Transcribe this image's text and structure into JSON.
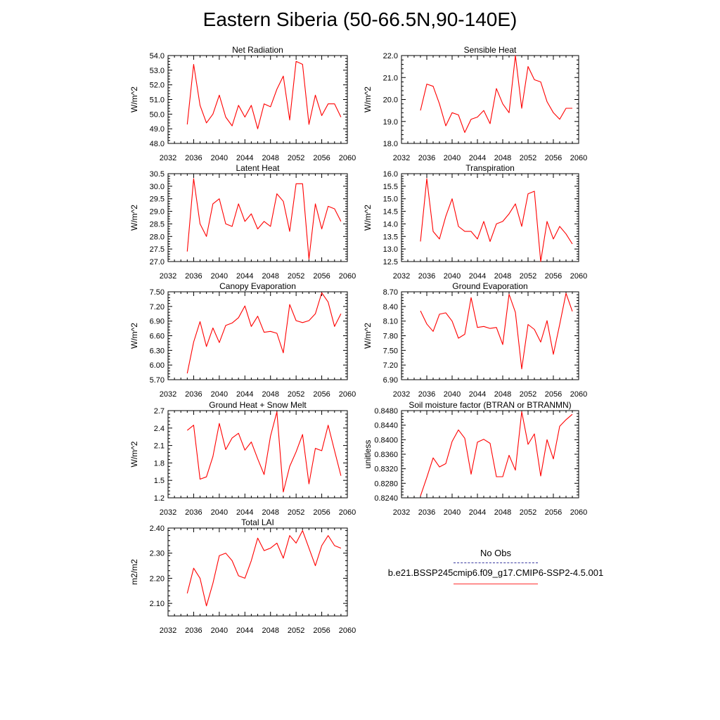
{
  "page_title": "Eastern Siberia (50-66.5N,90-140E)",
  "legend": {
    "obs_label": "No Obs",
    "case_label": "b.e21.BSSP245cmip6.f09_g17.CMIP6-SSP2-4.5.001",
    "obs_color": "#3a3aa0",
    "case_color": "#ff0000"
  },
  "chart_data": [
    {
      "type": "line",
      "title": "Net Radiation",
      "ylabel": "W/m^2",
      "xlim": [
        2032,
        2060
      ],
      "ylim": [
        48.0,
        54.0
      ],
      "xticks": [
        "2032",
        "2036",
        "2040",
        "2044",
        "2048",
        "2052",
        "2056",
        "2060"
      ],
      "yticks": [
        "48.0",
        "49.0",
        "50.0",
        "51.0",
        "52.0",
        "53.0",
        "54.0"
      ],
      "x": [
        2035,
        2036,
        2037,
        2038,
        2039,
        2040,
        2041,
        2042,
        2043,
        2044,
        2045,
        2046,
        2047,
        2048,
        2049,
        2050,
        2051,
        2052,
        2053,
        2054,
        2055,
        2056,
        2057,
        2058,
        2059
      ],
      "series": [
        {
          "values": [
            49.3,
            53.4,
            50.6,
            49.4,
            50.0,
            51.3,
            49.8,
            49.2,
            50.6,
            49.8,
            50.6,
            49.0,
            50.7,
            50.5,
            51.7,
            52.6,
            49.6,
            53.6,
            53.4,
            49.3,
            51.3,
            49.9,
            50.7,
            50.7,
            49.8
          ]
        }
      ]
    },
    {
      "type": "line",
      "title": "Sensible Heat",
      "ylabel": "W/m^2",
      "xlim": [
        2032,
        2060
      ],
      "ylim": [
        18.0,
        22.0
      ],
      "xticks": [
        "2032",
        "2036",
        "2040",
        "2044",
        "2048",
        "2052",
        "2056",
        "2060"
      ],
      "yticks": [
        "18.0",
        "19.0",
        "20.0",
        "21.0",
        "22.0"
      ],
      "x": [
        2035,
        2036,
        2037,
        2038,
        2039,
        2040,
        2041,
        2042,
        2043,
        2044,
        2045,
        2046,
        2047,
        2048,
        2049,
        2050,
        2051,
        2052,
        2053,
        2054,
        2055,
        2056,
        2057,
        2058,
        2059
      ],
      "series": [
        {
          "values": [
            19.5,
            20.7,
            20.6,
            19.8,
            18.8,
            19.4,
            19.3,
            18.5,
            19.1,
            19.2,
            19.5,
            18.9,
            20.5,
            19.8,
            19.4,
            22.0,
            19.6,
            21.5,
            20.9,
            20.8,
            19.9,
            19.4,
            19.1,
            19.6,
            19.6
          ]
        }
      ]
    },
    {
      "type": "line",
      "title": "Latent Heat",
      "ylabel": "W/m^2",
      "xlim": [
        2032,
        2060
      ],
      "ylim": [
        27.0,
        30.5
      ],
      "xticks": [
        "2032",
        "2036",
        "2040",
        "2044",
        "2048",
        "2052",
        "2056",
        "2060"
      ],
      "yticks": [
        "27.0",
        "27.5",
        "28.0",
        "28.5",
        "29.0",
        "29.5",
        "30.0",
        "30.5"
      ],
      "x": [
        2035,
        2036,
        2037,
        2038,
        2039,
        2040,
        2041,
        2042,
        2043,
        2044,
        2045,
        2046,
        2047,
        2048,
        2049,
        2050,
        2051,
        2052,
        2053,
        2054,
        2055,
        2056,
        2057,
        2058,
        2059
      ],
      "series": [
        {
          "values": [
            27.4,
            30.3,
            28.5,
            28.0,
            29.3,
            29.5,
            28.5,
            28.4,
            29.3,
            28.6,
            28.9,
            28.3,
            28.6,
            28.4,
            29.7,
            29.4,
            28.2,
            30.1,
            30.1,
            27.1,
            29.3,
            28.3,
            29.2,
            29.1,
            28.6
          ]
        }
      ]
    },
    {
      "type": "line",
      "title": "Transpiration",
      "ylabel": "W/m^2",
      "xlim": [
        2032,
        2060
      ],
      "ylim": [
        12.5,
        16.0
      ],
      "xticks": [
        "2032",
        "2036",
        "2040",
        "2044",
        "2048",
        "2052",
        "2056",
        "2060"
      ],
      "yticks": [
        "12.5",
        "13.0",
        "13.5",
        "14.0",
        "14.5",
        "15.0",
        "15.5",
        "16.0"
      ],
      "x": [
        2035,
        2036,
        2037,
        2038,
        2039,
        2040,
        2041,
        2042,
        2043,
        2044,
        2045,
        2046,
        2047,
        2048,
        2049,
        2050,
        2051,
        2052,
        2053,
        2054,
        2055,
        2056,
        2057,
        2058,
        2059
      ],
      "series": [
        {
          "values": [
            13.3,
            15.8,
            13.7,
            13.4,
            14.3,
            15.0,
            13.9,
            13.7,
            13.7,
            13.4,
            14.1,
            13.3,
            14.0,
            14.1,
            14.4,
            14.8,
            13.9,
            15.2,
            15.3,
            12.5,
            14.1,
            13.4,
            13.9,
            13.6,
            13.2
          ]
        }
      ]
    },
    {
      "type": "line",
      "title": "Canopy Evaporation",
      "ylabel": "W/m^2",
      "xlim": [
        2032,
        2060
      ],
      "ylim": [
        5.7,
        7.5
      ],
      "xticks": [
        "2032",
        "2036",
        "2040",
        "2044",
        "2048",
        "2052",
        "2056",
        "2060"
      ],
      "yticks": [
        "5.70",
        "6.00",
        "6.30",
        "6.60",
        "6.90",
        "7.20",
        "7.50"
      ],
      "x": [
        2035,
        2036,
        2037,
        2038,
        2039,
        2040,
        2041,
        2042,
        2043,
        2044,
        2045,
        2046,
        2047,
        2048,
        2049,
        2050,
        2051,
        2052,
        2053,
        2054,
        2055,
        2056,
        2057,
        2058,
        2059
      ],
      "series": [
        {
          "values": [
            5.83,
            6.47,
            6.89,
            6.38,
            6.76,
            6.46,
            6.81,
            6.86,
            6.97,
            7.21,
            6.79,
            7.0,
            6.67,
            6.69,
            6.65,
            6.25,
            7.24,
            6.91,
            6.87,
            6.91,
            7.05,
            7.48,
            7.29,
            6.79,
            7.05
          ]
        }
      ]
    },
    {
      "type": "line",
      "title": "Ground Evaporation",
      "ylabel": "W/m^2",
      "xlim": [
        2032,
        2060
      ],
      "ylim": [
        6.9,
        8.7
      ],
      "xticks": [
        "2032",
        "2036",
        "2040",
        "2044",
        "2048",
        "2052",
        "2056",
        "2060"
      ],
      "yticks": [
        "6.90",
        "7.20",
        "7.50",
        "7.80",
        "8.10",
        "8.40",
        "8.70"
      ],
      "x": [
        2035,
        2036,
        2037,
        2038,
        2039,
        2040,
        2041,
        2042,
        2043,
        2044,
        2045,
        2046,
        2047,
        2048,
        2049,
        2050,
        2051,
        2052,
        2053,
        2054,
        2055,
        2056,
        2057,
        2058,
        2059
      ],
      "series": [
        {
          "values": [
            8.31,
            8.04,
            7.89,
            8.24,
            8.27,
            8.1,
            7.75,
            7.83,
            8.58,
            7.97,
            7.99,
            7.95,
            7.97,
            7.62,
            8.65,
            8.28,
            7.12,
            8.03,
            7.93,
            7.67,
            8.11,
            7.42,
            8.03,
            8.67,
            8.3
          ]
        }
      ]
    },
    {
      "type": "line",
      "title": "Ground Heat + Snow Melt",
      "ylabel": "W/m^2",
      "xlim": [
        2032,
        2060
      ],
      "ylim": [
        1.2,
        2.7
      ],
      "xticks": [
        "2032",
        "2036",
        "2040",
        "2044",
        "2048",
        "2052",
        "2056",
        "2060"
      ],
      "yticks": [
        "1.2",
        "1.5",
        "1.8",
        "2.1",
        "2.4",
        "2.7"
      ],
      "x": [
        2035,
        2036,
        2037,
        2038,
        2039,
        2040,
        2041,
        2042,
        2043,
        2044,
        2045,
        2046,
        2047,
        2048,
        2049,
        2050,
        2051,
        2052,
        2053,
        2054,
        2055,
        2056,
        2057,
        2058,
        2059
      ],
      "series": [
        {
          "values": [
            2.36,
            2.45,
            1.52,
            1.56,
            1.91,
            2.48,
            2.03,
            2.23,
            2.31,
            2.02,
            2.16,
            1.87,
            1.6,
            2.26,
            2.68,
            1.3,
            1.74,
            1.99,
            2.29,
            1.44,
            2.05,
            2.01,
            2.45,
            2.01,
            1.58
          ]
        }
      ]
    },
    {
      "type": "line",
      "title": "Soil moisture factor (BTRAN or BTRANMN)",
      "ylabel": "unitless",
      "xlim": [
        2032,
        2060
      ],
      "ylim": [
        0.824,
        0.848
      ],
      "xticks": [
        "2032",
        "2036",
        "2040",
        "2044",
        "2048",
        "2052",
        "2056",
        "2060"
      ],
      "yticks": [
        "0.8240",
        "0.8280",
        "0.8320",
        "0.8360",
        "0.8400",
        "0.8440",
        "0.8480"
      ],
      "x": [
        2035,
        2036,
        2037,
        2038,
        2039,
        2040,
        2041,
        2042,
        2043,
        2044,
        2045,
        2046,
        2047,
        2048,
        2049,
        2050,
        2051,
        2052,
        2053,
        2054,
        2055,
        2056,
        2057,
        2058,
        2059
      ],
      "series": [
        {
          "values": [
            0.8245,
            0.8296,
            0.835,
            0.8325,
            0.8334,
            0.8395,
            0.8427,
            0.8404,
            0.8305,
            0.8393,
            0.8401,
            0.839,
            0.8298,
            0.8298,
            0.8357,
            0.8316,
            0.8477,
            0.8387,
            0.8416,
            0.83,
            0.84,
            0.8347,
            0.8437,
            0.8455,
            0.847
          ]
        }
      ]
    },
    {
      "type": "line",
      "title": "Total LAI",
      "ylabel": "m2/m2",
      "xlim": [
        2032,
        2060
      ],
      "ylim": [
        2.05,
        2.4
      ],
      "xticks": [
        "2032",
        "2036",
        "2040",
        "2044",
        "2048",
        "2052",
        "2056",
        "2060"
      ],
      "yticks": [
        "2.10",
        "2.20",
        "2.30",
        "2.40"
      ],
      "x": [
        2035,
        2036,
        2037,
        2038,
        2039,
        2040,
        2041,
        2042,
        2043,
        2044,
        2045,
        2046,
        2047,
        2048,
        2049,
        2050,
        2051,
        2052,
        2053,
        2054,
        2055,
        2056,
        2057,
        2058,
        2059
      ],
      "series": [
        {
          "values": [
            2.14,
            2.24,
            2.2,
            2.09,
            2.18,
            2.29,
            2.3,
            2.27,
            2.21,
            2.2,
            2.27,
            2.36,
            2.31,
            2.32,
            2.34,
            2.28,
            2.37,
            2.34,
            2.39,
            2.32,
            2.25,
            2.33,
            2.37,
            2.33,
            2.32
          ]
        }
      ]
    }
  ]
}
